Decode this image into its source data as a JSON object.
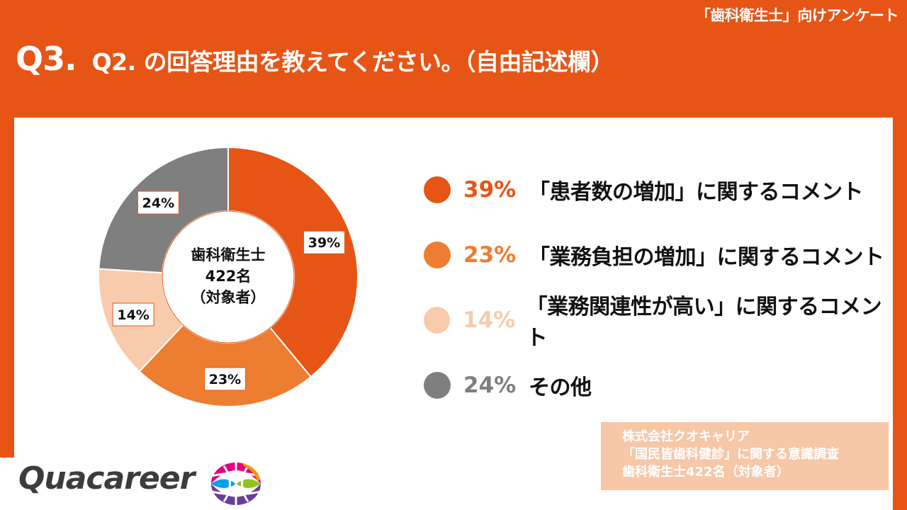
{
  "header": {
    "tag": "「歯科衛生士」向けアンケート",
    "qnum": "Q3.",
    "question": "Q2. の回答理由を教えてください。（自由記述欄）"
  },
  "chart_data": {
    "type": "pie",
    "center_text": [
      "歯科衛生士",
      "422名",
      "（対象者）"
    ],
    "slices": [
      {
        "label": "「患者数の増加」に関するコメント",
        "value": 39,
        "display": "39%",
        "color": "#e65516",
        "text_color": "#e65516"
      },
      {
        "label": "「業務負担の増加」に関するコメント",
        "value": 23,
        "display": "23%",
        "color": "#ed7d31",
        "text_color": "#ed7d31"
      },
      {
        "label": "「業務関連性が高い」に関するコメント",
        "value": 14,
        "display": "14%",
        "color": "#f8cbad",
        "text_color": "#f8cbad"
      },
      {
        "label": "その他",
        "value": 24,
        "display": "24%",
        "color": "#7f7f7f",
        "text_color": "#7f7f7f"
      }
    ]
  },
  "source": {
    "lines": [
      "株式会社クオキャリア",
      "「国民皆歯科健診」に関する意識調査",
      "歯科衛生士422名（対象者）"
    ]
  },
  "logo": {
    "text": "Quacareer",
    "icon": "globe-icon"
  }
}
